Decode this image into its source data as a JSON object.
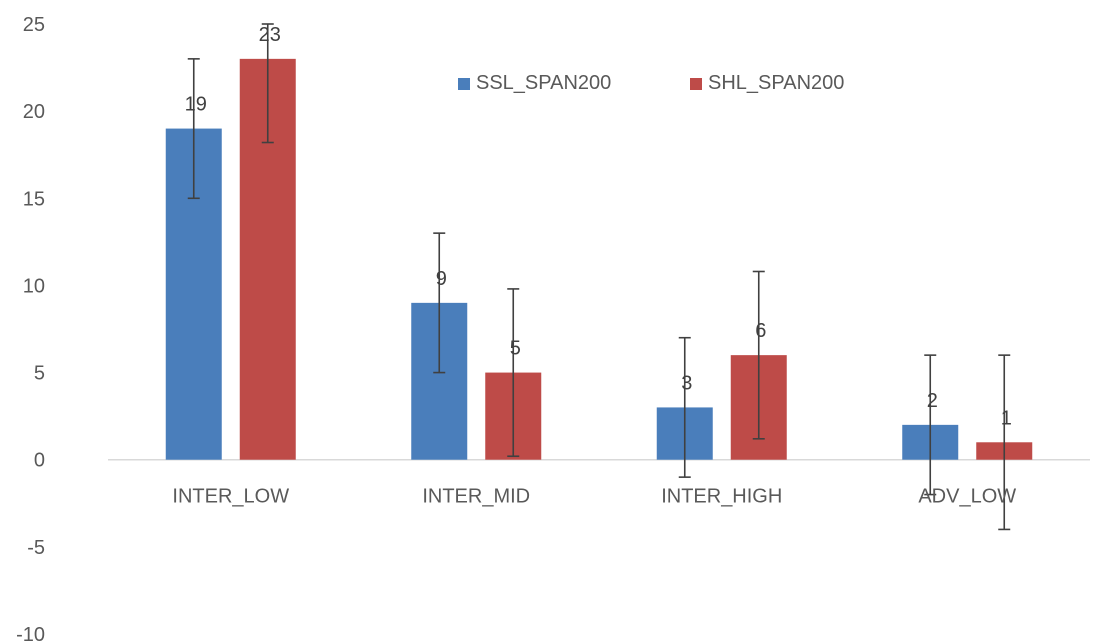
{
  "chart_data": {
    "type": "bar",
    "title": "",
    "xlabel": "",
    "ylabel": "",
    "ylim": [
      -10,
      25
    ],
    "yticks": [
      -10,
      -5,
      0,
      5,
      10,
      15,
      20,
      25
    ],
    "grid": false,
    "legend_position": "top-center",
    "categories": [
      "INTER_LOW",
      "INTER_MID",
      "INTER_HIGH",
      "ADV_LOW"
    ],
    "series": [
      {
        "name": "SSL_SPAN200",
        "color": "#4a7ebb",
        "values": [
          19,
          9,
          3,
          2
        ],
        "error_low": [
          15,
          5,
          -1,
          -2
        ],
        "error_high": [
          23,
          13,
          7,
          6
        ]
      },
      {
        "name": "SHL_SPAN200",
        "color": "#be4b48",
        "values": [
          23,
          5,
          6,
          1
        ],
        "error_low": [
          18.2,
          0.2,
          1.2,
          -4
        ],
        "error_high": [
          25,
          9.8,
          10.8,
          6
        ]
      }
    ]
  }
}
